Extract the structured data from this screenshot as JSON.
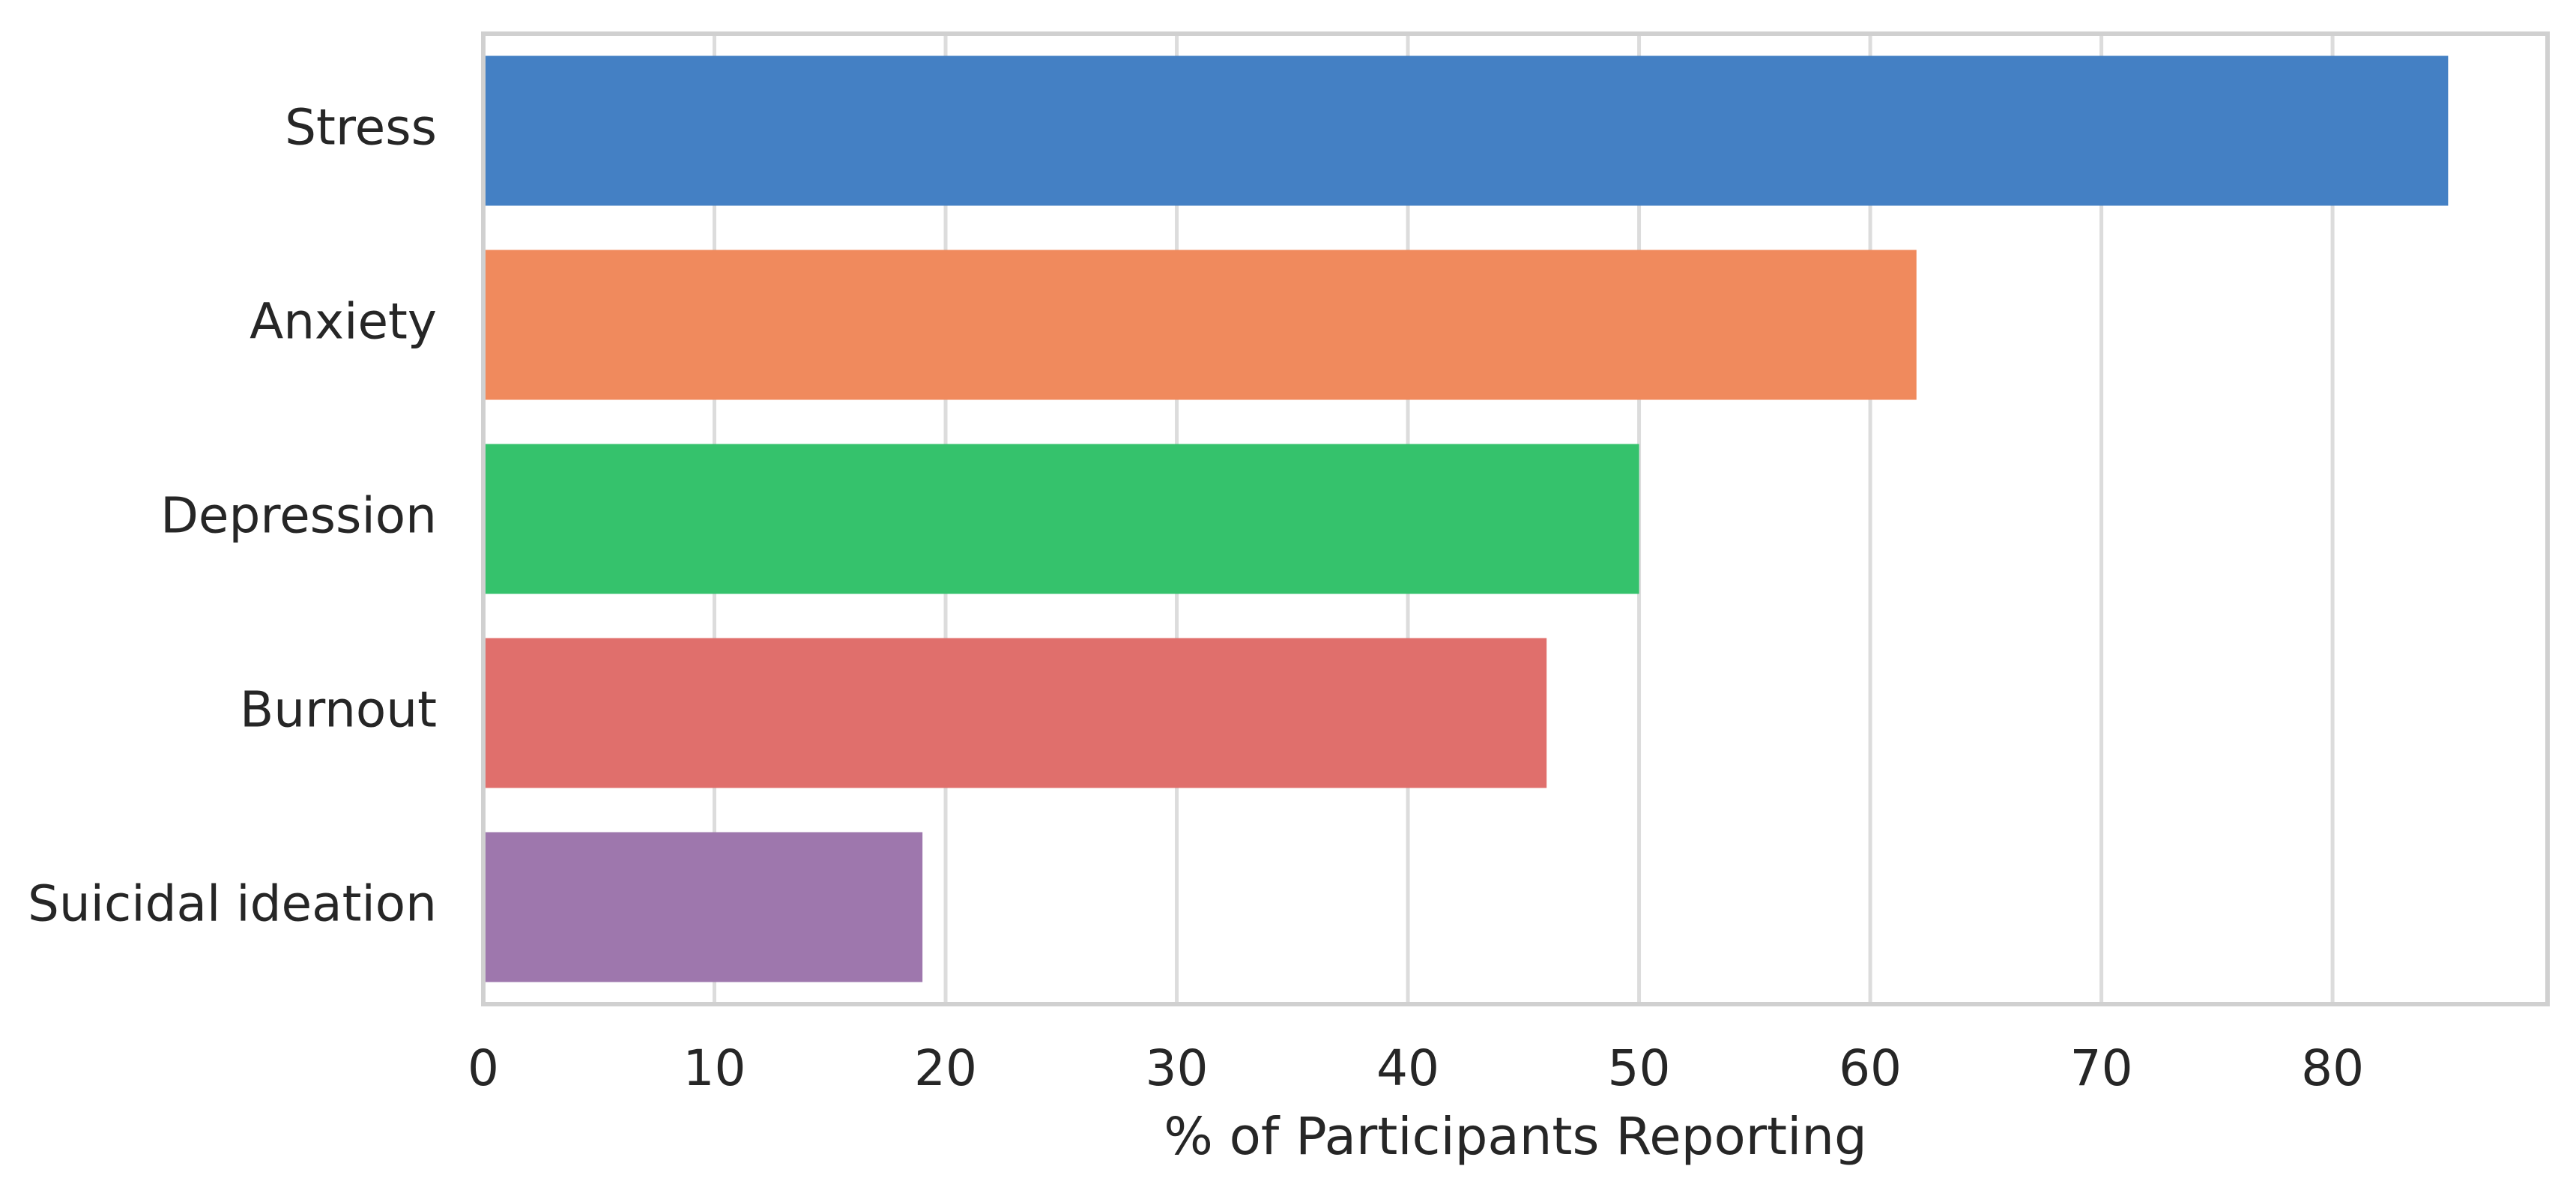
{
  "chart_data": {
    "type": "bar",
    "orientation": "horizontal",
    "categories": [
      "Stress",
      "Anxiety",
      "Depression",
      "Burnout",
      "Suicidal ideation"
    ],
    "values": [
      85,
      62,
      50,
      46,
      19
    ],
    "colors": [
      "#4480c4",
      "#f08a5d",
      "#35c26c",
      "#e06f6c",
      "#9e77ad"
    ],
    "title": "",
    "xlabel": "% of Participants Reporting",
    "ylabel": "",
    "xlim": [
      0,
      89.3
    ],
    "xticks": [
      0,
      10,
      20,
      30,
      40,
      50,
      60,
      70,
      80
    ],
    "xtick_labels": [
      "0",
      "10",
      "20",
      "30",
      "40",
      "50",
      "60",
      "70",
      "80"
    ],
    "grid": "vertical",
    "legend": "none"
  }
}
